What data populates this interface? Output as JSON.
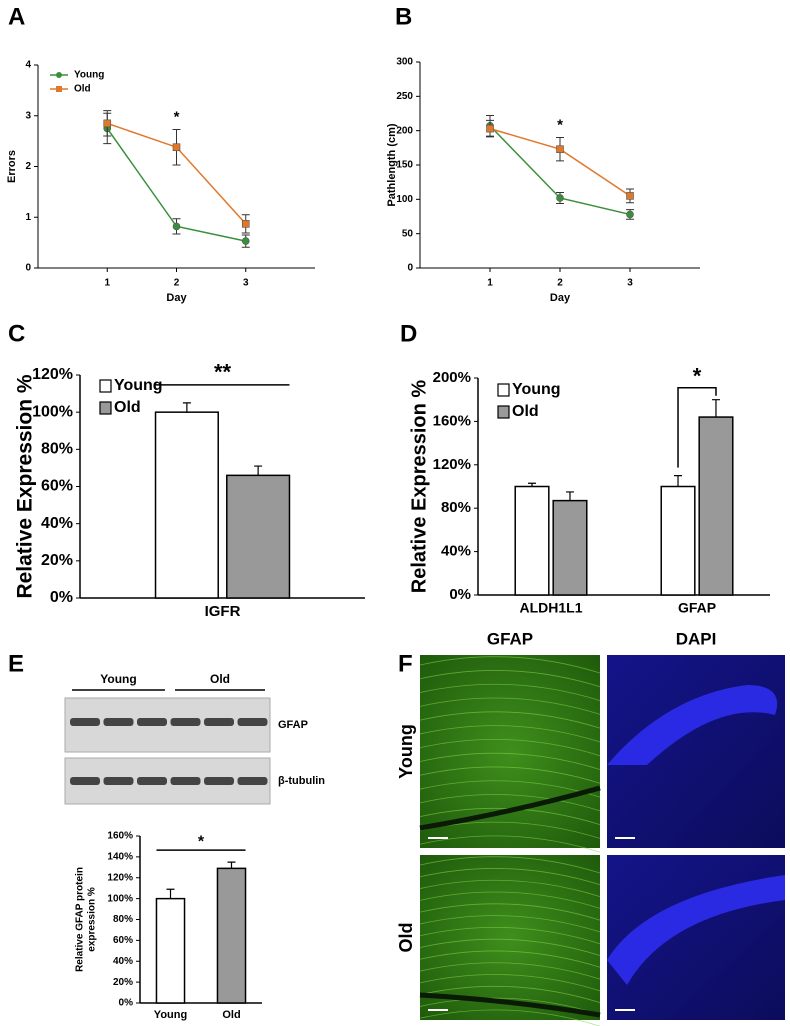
{
  "panels": [
    "A",
    "B",
    "C",
    "D",
    "E",
    "F"
  ],
  "chart_data": [
    {
      "type": "line",
      "xlabel": "Day",
      "ylabel": "Errors",
      "x": [
        1,
        2,
        3
      ],
      "xlim": [
        0,
        4
      ],
      "xticks": [
        1,
        2,
        3
      ],
      "ylim": [
        0,
        4
      ],
      "yticks": [
        0,
        1,
        2,
        3,
        4
      ],
      "legend": "upper left",
      "annotations": [
        "*"
      ],
      "series": [
        {
          "name": "Young",
          "color": "#3a8f3a",
          "marker": "circle",
          "values": [
            2.75,
            0.82,
            0.53
          ],
          "errors": [
            0.3,
            0.15,
            0.12
          ]
        },
        {
          "name": "Old",
          "color": "#e0782a",
          "marker": "square",
          "values": [
            2.85,
            2.38,
            0.87
          ],
          "errors": [
            0.25,
            0.35,
            0.18
          ]
        }
      ]
    },
    {
      "type": "line",
      "xlabel": "Day",
      "ylabel": "Pathlength (cm)",
      "x": [
        1,
        2,
        3
      ],
      "xlim": [
        0,
        4
      ],
      "xticks": [
        1,
        2,
        3
      ],
      "ylim": [
        0,
        300
      ],
      "yticks": [
        0,
        50,
        100,
        150,
        200,
        250,
        300
      ],
      "legend": "none",
      "annotations": [
        "*"
      ],
      "series": [
        {
          "name": "Young",
          "color": "#3a8f3a",
          "marker": "circle",
          "values": [
            207,
            102,
            78
          ],
          "errors": [
            15,
            8,
            7
          ]
        },
        {
          "name": "Old",
          "color": "#e0782a",
          "marker": "square",
          "values": [
            203,
            173,
            105
          ],
          "errors": [
            12,
            17,
            10
          ]
        }
      ]
    },
    {
      "type": "bar",
      "ylabel": [
        "Relative Expression %"
      ],
      "categories": [
        "IGFR"
      ],
      "ylim": [
        0,
        120
      ],
      "yticks": [
        {
          "value": 0,
          "label": "0%"
        },
        {
          "value": 20,
          "label": "20%"
        },
        {
          "value": 40,
          "label": "40%"
        },
        {
          "value": 60,
          "label": "60%"
        },
        {
          "value": 80,
          "label": "80%"
        },
        {
          "value": 100,
          "label": "100%"
        },
        {
          "value": 120,
          "label": "120%"
        }
      ],
      "legend": "upper left",
      "annotations": [
        "**"
      ],
      "series": [
        {
          "name": "Young",
          "color": "#ffffff",
          "values": [
            100
          ],
          "errors": [
            5
          ]
        },
        {
          "name": "Old",
          "color": "#999999",
          "values": [
            66
          ],
          "errors": [
            5
          ]
        }
      ]
    },
    {
      "type": "bar",
      "ylabel": [
        "Relative Expression %"
      ],
      "categories": [
        "ALDH1L1",
        "GFAP"
      ],
      "ylim": [
        0,
        200
      ],
      "yticks": [
        {
          "value": 0,
          "label": "0%"
        },
        {
          "value": 40,
          "label": "40%"
        },
        {
          "value": 80,
          "label": "80%"
        },
        {
          "value": 120,
          "label": "120%"
        },
        {
          "value": 160,
          "label": "160%"
        },
        {
          "value": 200,
          "label": "200%"
        }
      ],
      "legend": "upper left",
      "annotations": [
        "*"
      ],
      "series": [
        {
          "name": "Young",
          "color": "#ffffff",
          "values": [
            100,
            100
          ],
          "errors": [
            3,
            10
          ]
        },
        {
          "name": "Old",
          "color": "#999999",
          "values": [
            87,
            164
          ],
          "errors": [
            8,
            16
          ]
        }
      ]
    },
    {
      "type": "bar",
      "ylabel": [
        "Relative GFAP protein",
        "expression %"
      ],
      "categories": [
        "Young",
        "Old"
      ],
      "ylim": [
        0,
        160
      ],
      "yticks": [
        {
          "value": 0,
          "label": "0%"
        },
        {
          "value": 20,
          "label": "20%"
        },
        {
          "value": 40,
          "label": "40%"
        },
        {
          "value": 60,
          "label": "60%"
        },
        {
          "value": 80,
          "label": "80%"
        },
        {
          "value": 100,
          "label": "100%"
        },
        {
          "value": 120,
          "label": "120%"
        },
        {
          "value": 140,
          "label": "140%"
        },
        {
          "value": 160,
          "label": "160%"
        }
      ],
      "legend": "none",
      "annotations": [
        "*"
      ],
      "values": [
        100,
        129
      ],
      "errors": [
        9,
        6
      ],
      "colors": [
        "#ffffff",
        "#999999"
      ]
    }
  ],
  "blot": {
    "groups": [
      "Young",
      "Old"
    ],
    "bands": [
      "GFAP",
      "β-tubulin"
    ]
  },
  "images": {
    "columns": [
      "GFAP",
      "DAPI"
    ],
    "rows": [
      "Young",
      "Old"
    ]
  }
}
